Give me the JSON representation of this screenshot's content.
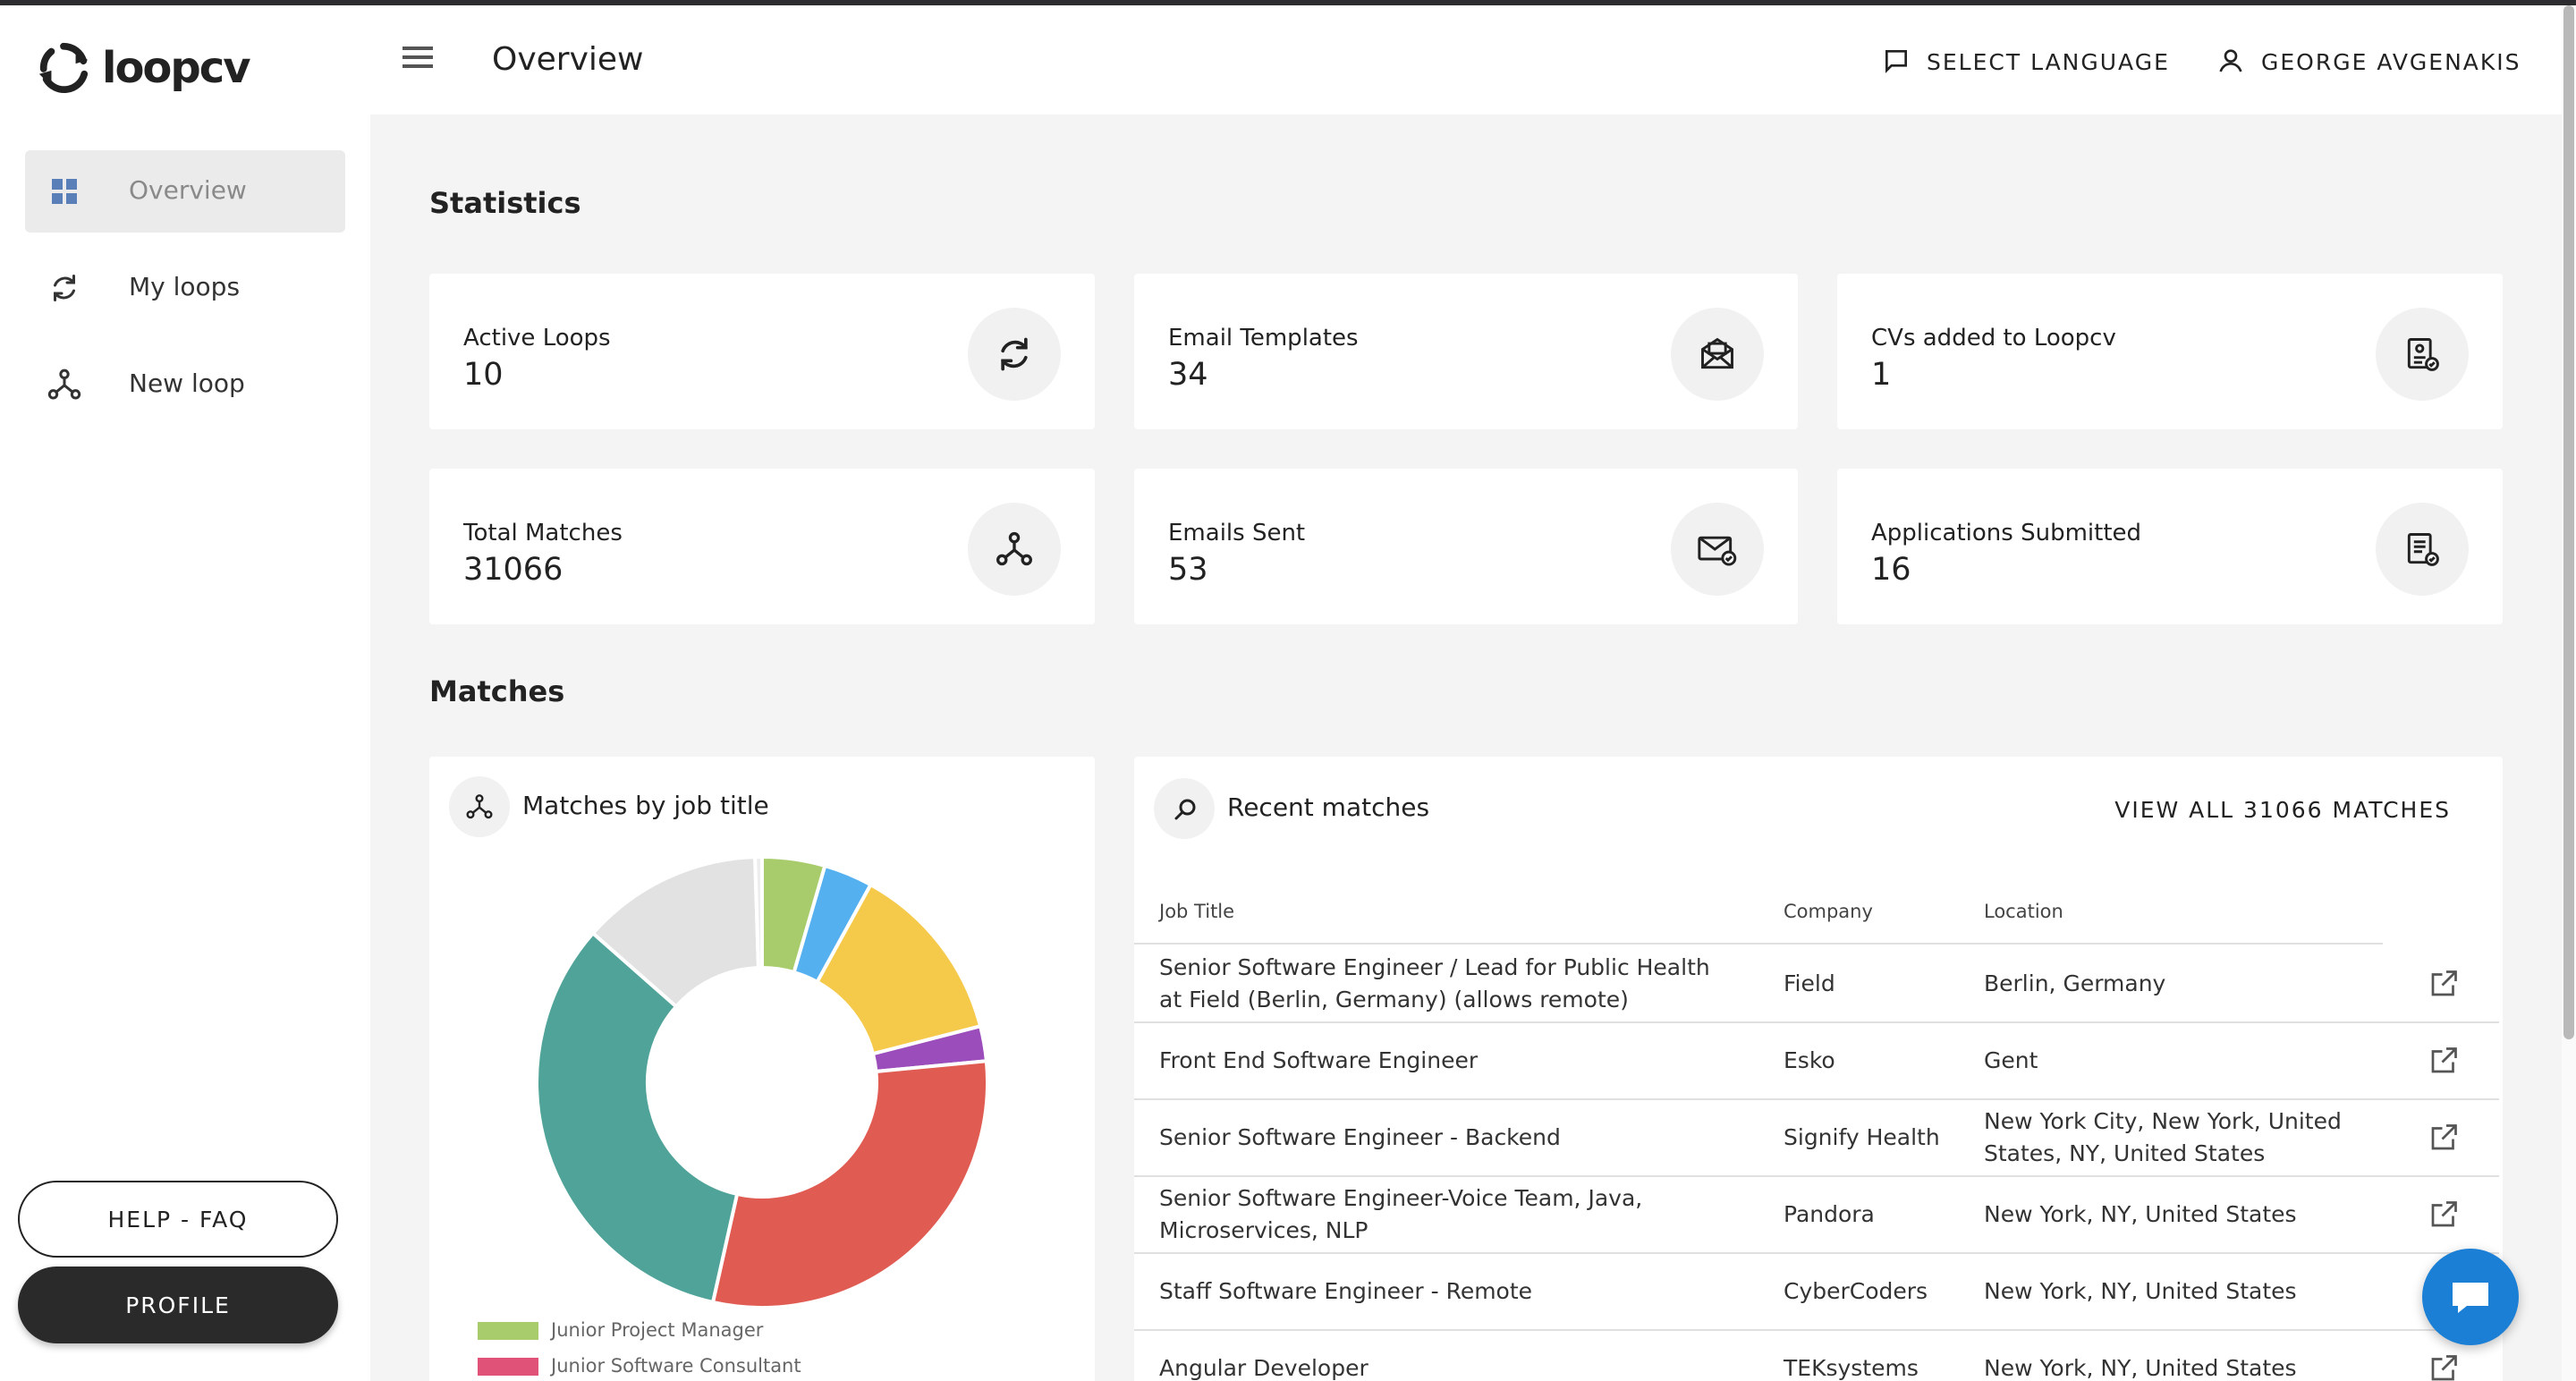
{
  "app": {
    "logo_text": "loopcv"
  },
  "sidebar": {
    "items": [
      {
        "label": "Overview",
        "icon": "dashboard-grid-icon",
        "active": true
      },
      {
        "label": "My loops",
        "icon": "refresh-icon"
      },
      {
        "label": "New loop",
        "icon": "hub-icon"
      }
    ],
    "help_label": "HELP - FAQ",
    "profile_label": "PROFILE"
  },
  "header": {
    "title": "Overview",
    "language_label": "SELECT LANGUAGE",
    "user_name": "GEORGE AVGENAKIS"
  },
  "statistics": {
    "title": "Statistics",
    "cards": [
      {
        "label": "Active Loops",
        "value": "10",
        "icon": "refresh-icon"
      },
      {
        "label": "Email Templates",
        "value": "34",
        "icon": "email-template-icon"
      },
      {
        "label": "CVs added to Loopcv",
        "value": "1",
        "icon": "cv-document-icon"
      },
      {
        "label": "Total Matches",
        "value": "31066",
        "icon": "hub-icon"
      },
      {
        "label": "Emails Sent",
        "value": "53",
        "icon": "email-sent-icon"
      },
      {
        "label": "Applications Submitted",
        "value": "16",
        "icon": "application-submitted-icon"
      }
    ]
  },
  "matches": {
    "title": "Matches",
    "by_job_title": {
      "title": "Matches by job title",
      "legend": [
        {
          "label": "Junior Project Manager",
          "color": "#a8cc6c"
        },
        {
          "label": "Junior Software Consultant",
          "color": "#e05277"
        }
      ]
    },
    "recent": {
      "title": "Recent matches",
      "view_all_label": "VIEW ALL 31066 MATCHES",
      "columns": [
        "Job Title",
        "Company",
        "Location"
      ],
      "rows": [
        {
          "title": "Senior Software Engineer / Lead for Public Health at Field (Berlin, Germany) (allows remote)",
          "company": "Field",
          "location": "Berlin, Germany"
        },
        {
          "title": "Front End Software Engineer",
          "company": "Esko",
          "location": "Gent"
        },
        {
          "title": "Senior Software Engineer - Backend",
          "company": "Signify Health",
          "location": "New York City, New York, United States, NY, United States"
        },
        {
          "title": "Senior Software Engineer-Voice Team, Java, Microservices, NLP",
          "company": "Pandora",
          "location": "New York, NY, United States"
        },
        {
          "title": "Staff Software Engineer - Remote",
          "company": "CyberCoders",
          "location": "New York, NY, United States"
        },
        {
          "title": "Angular Developer",
          "company": "TEKsystems",
          "location": "New York, NY, United States"
        }
      ]
    }
  },
  "chart_data": {
    "type": "pie",
    "variant": "donut",
    "slices": [
      {
        "color": "#a8cc6c",
        "value": 4.5
      },
      {
        "color": "#55b0f0",
        "value": 3.5
      },
      {
        "color": "#f5c94a",
        "value": 13
      },
      {
        "color": "#9b4dbb",
        "value": 2.5
      },
      {
        "color": "#e05c52",
        "value": 30
      },
      {
        "color": "#4fa398",
        "value": 33
      },
      {
        "color": "#e2e2e2",
        "value": 13
      },
      {
        "color": "#ededed",
        "value": 0.5
      }
    ],
    "legend": [
      "Junior Project Manager",
      "Junior Software Consultant"
    ]
  }
}
